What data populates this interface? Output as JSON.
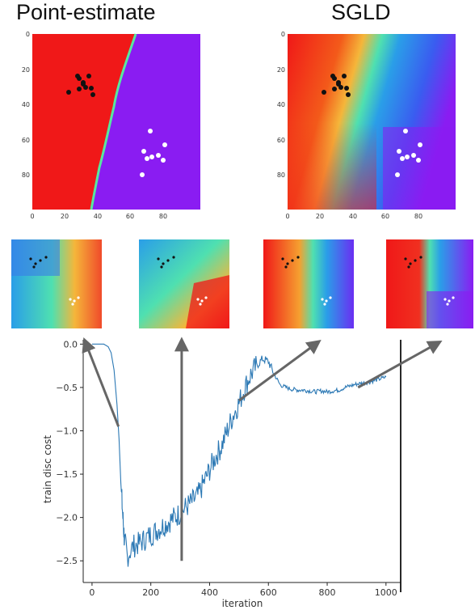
{
  "titles": {
    "left": "Point-estimate",
    "right": "SGLD"
  },
  "panels": {
    "y_ticks": [
      "0",
      "20",
      "40",
      "60",
      "80"
    ],
    "x_ticks": [
      "0",
      "20",
      "40",
      "60",
      "80"
    ]
  },
  "chart_data": {
    "type": "line",
    "xlabel": "iteration",
    "ylabel": "train disc cost",
    "xlim": [
      -30,
      1050
    ],
    "ylim": [
      -2.75,
      0.05
    ],
    "x_ticks": [
      0,
      200,
      400,
      600,
      800,
      1000
    ],
    "y_ticks": [
      0.0,
      -0.5,
      -1.0,
      -1.5,
      -2.0,
      -2.5
    ],
    "y_tick_labels": [
      "0.0",
      "−0.5",
      "−1.0",
      "−1.5",
      "−2.0",
      "−2.5"
    ],
    "vline_x": 1050,
    "series": [
      {
        "color": "#2b78b4",
        "x": [
          0,
          40,
          55,
          65,
          75,
          85,
          92,
          98,
          105,
          110,
          120,
          140,
          160,
          180,
          200,
          220,
          240,
          260,
          280,
          300,
          320,
          340,
          360,
          380,
          400,
          420,
          440,
          460,
          480,
          500,
          520,
          540,
          560,
          580,
          600,
          620,
          640,
          660,
          680,
          700,
          720,
          740,
          760,
          780,
          800,
          820,
          840,
          860,
          880,
          900,
          920,
          940,
          960,
          980,
          1000
        ],
        "values": [
          0.0,
          0.0,
          -0.03,
          -0.1,
          -0.3,
          -0.7,
          -1.1,
          -1.6,
          -2.0,
          -2.25,
          -2.45,
          -2.33,
          -2.3,
          -2.25,
          -2.2,
          -2.15,
          -2.1,
          -2.05,
          -2.0,
          -1.95,
          -1.88,
          -1.82,
          -1.75,
          -1.6,
          -1.45,
          -1.3,
          -1.18,
          -1.0,
          -0.82,
          -0.68,
          -0.5,
          -0.35,
          -0.25,
          -0.17,
          -0.2,
          -0.35,
          -0.47,
          -0.5,
          -0.52,
          -0.53,
          -0.53,
          -0.54,
          -0.55,
          -0.54,
          -0.55,
          -0.54,
          -0.53,
          -0.5,
          -0.48,
          -0.46,
          -0.45,
          -0.44,
          -0.42,
          -0.4,
          -0.38
        ]
      }
    ],
    "arrows": [
      {
        "from": [
          90,
          -0.95
        ],
        "to": [
          -20,
          0.0
        ]
      },
      {
        "from": [
          305,
          -2.5
        ],
        "to": [
          305,
          0.0
        ]
      },
      {
        "from": [
          500,
          -0.65
        ],
        "to": [
          760,
          0.0
        ]
      },
      {
        "from": [
          905,
          -0.5
        ],
        "to": [
          1170,
          0.0
        ]
      }
    ]
  }
}
